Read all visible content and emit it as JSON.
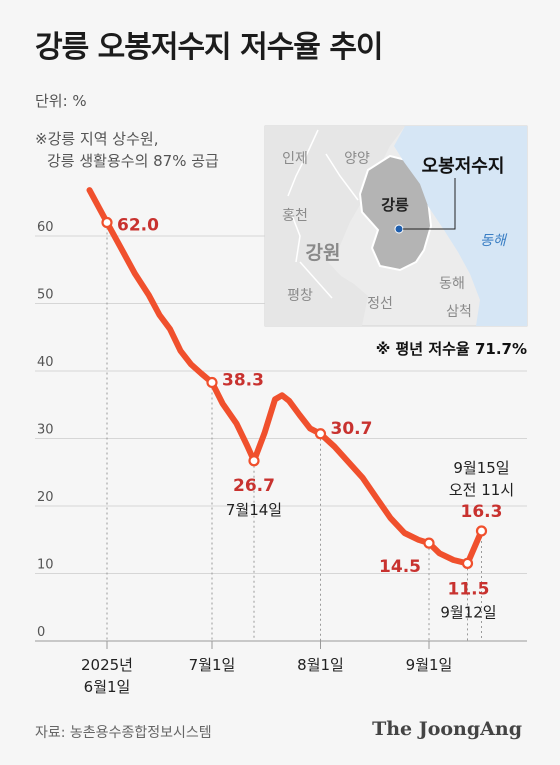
{
  "title": "강릉 오봉저수지 저수율 추이",
  "unit_label": "단위: %",
  "note_lines": [
    "※강릉 지역 상수원,",
    "강릉 생활용수의 87% 공급"
  ],
  "average_note": "※ 평년 저수율 71.7%",
  "source": "자료: 농촌용수종합정보시스템",
  "brand": "The JoongAng",
  "map": {
    "marker_label": "오봉저수지",
    "city_label": "강릉",
    "sea_label": "동해",
    "province_label": "강원",
    "places": [
      "인제",
      "양양",
      "홍천",
      "평창",
      "정선",
      "동해",
      "삼척"
    ]
  },
  "colors": {
    "line": "#f0502d",
    "label": "#c8322f",
    "sea": "#d6e6f5",
    "highlight": "#b4b4b4",
    "marker": "#1f5fae"
  },
  "chart_data": {
    "type": "line",
    "ylim": [
      0,
      70
    ],
    "yticks": [
      0,
      10,
      20,
      30,
      40,
      50,
      60
    ],
    "x_ticks": [
      {
        "day": 0,
        "label": [
          "2025년",
          "6월1일"
        ]
      },
      {
        "day": 30,
        "label": [
          "7월1일"
        ]
      },
      {
        "day": 61,
        "label": [
          "8월1일"
        ]
      },
      {
        "day": 92,
        "label": [
          "9월1일"
        ]
      }
    ],
    "series": [
      {
        "values": [
          [
            -5,
            66.8
          ],
          [
            0,
            62.0
          ],
          [
            4,
            58.2
          ],
          [
            8,
            54.4
          ],
          [
            12,
            51.2
          ],
          [
            15,
            48.3
          ],
          [
            18,
            46.2
          ],
          [
            21,
            43.0
          ],
          [
            24,
            41.0
          ],
          [
            27,
            39.6
          ],
          [
            30,
            38.3
          ],
          [
            33,
            35.2
          ],
          [
            37,
            32.2
          ],
          [
            40,
            29.0
          ],
          [
            42,
            26.7
          ],
          [
            45,
            30.8
          ],
          [
            48,
            35.8
          ],
          [
            50,
            36.4
          ],
          [
            52,
            35.6
          ],
          [
            55,
            33.5
          ],
          [
            58,
            31.5
          ],
          [
            61,
            30.7
          ],
          [
            65,
            28.8
          ],
          [
            69,
            26.5
          ],
          [
            73,
            24.2
          ],
          [
            77,
            21.2
          ],
          [
            81,
            18.2
          ],
          [
            85,
            16.0
          ],
          [
            89,
            15.0
          ],
          [
            92,
            14.5
          ],
          [
            95,
            13.0
          ],
          [
            99,
            12.0
          ],
          [
            103,
            11.5
          ],
          [
            107,
            16.3
          ]
        ]
      }
    ],
    "markers": [
      {
        "day": 0,
        "value": 62.0,
        "label": "62.0"
      },
      {
        "day": 30,
        "value": 38.3,
        "label": "38.3"
      },
      {
        "day": 42,
        "value": 26.7,
        "label": "26.7",
        "note": [
          "7월14일"
        ]
      },
      {
        "day": 61,
        "value": 30.7,
        "label": "30.7"
      },
      {
        "day": 92,
        "value": 14.5,
        "label": "14.5"
      },
      {
        "day": 103,
        "value": 11.5,
        "label": "11.5",
        "note": [
          "9월12일"
        ]
      },
      {
        "day": 107,
        "value": 16.3,
        "label": "16.3",
        "note": [
          "9월15일",
          "오전 11시"
        ]
      }
    ]
  }
}
